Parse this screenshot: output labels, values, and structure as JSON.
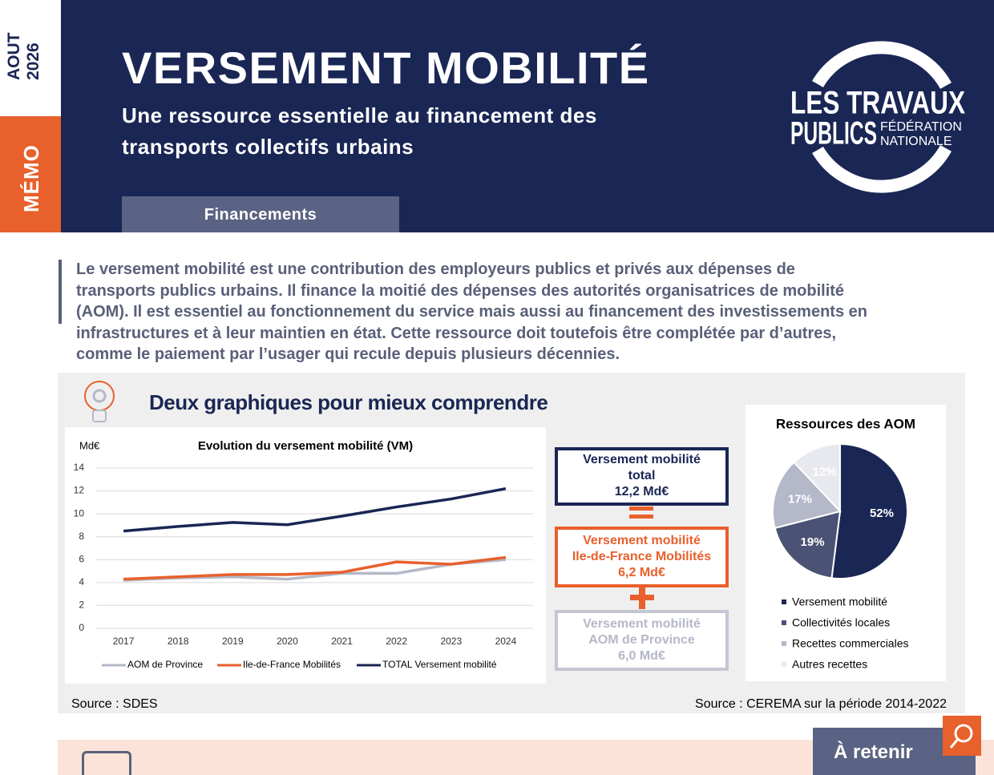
{
  "sidebar": {
    "month": "AOUT",
    "year": "2026",
    "label": "MÉMO"
  },
  "header": {
    "title": "VERSEMENT MOBILITÉ",
    "subtitle": [
      "Une ressource essentielle au financement des",
      "transports collectifs urbains"
    ],
    "tag": "Financements"
  },
  "logo": {
    "line1": "LES TRAVAUX",
    "line2": "PUBLICS",
    "line3": "FÉDÉRATION",
    "line4": "NATIONALE"
  },
  "intro": [
    "Le versement mobilité est une contribution des employeurs publics et privés aux dépenses de",
    "transports publics urbains. Il finance la moitié des dépenses des autorités organisatrices de mobilité",
    "(AOM). Il est essentiel au fonctionnement du service mais aussi au financement des investissements en",
    "infrastructures et à leur maintien en état. Cette ressource doit toutefois être complétée par d’autres,",
    "comme le paiement par l’usager qui recule depuis plusieurs décennies."
  ],
  "section": {
    "title": "Deux graphiques pour mieux comprendre",
    "source_left": "Source : SDES",
    "source_right": "Source : CEREMA sur la période 2014-2022"
  },
  "boxes": [
    {
      "lines": [
        "Versement mobilité",
        "total",
        "12,2 Md€"
      ]
    },
    {
      "lines": [
        "Versement mobilité",
        "Ile-de-France Mobilités",
        "6,2 Md€"
      ]
    },
    {
      "lines": [
        "Versement mobilité",
        "AOM de Province",
        "6,0 Md€"
      ]
    }
  ],
  "footer": {
    "tab": "À retenir"
  },
  "chart_data": [
    {
      "type": "line",
      "title": "Evolution du versement mobilité (VM)",
      "ylabel": "Md€",
      "categories": [
        "2017",
        "2018",
        "2019",
        "2020",
        "2021",
        "2022",
        "2023",
        "2024"
      ],
      "series": [
        {
          "name": "AOM de Province",
          "color": "#b4b8c8",
          "values": [
            4.2,
            4.4,
            4.5,
            4.3,
            4.8,
            4.8,
            5.6,
            6.0
          ]
        },
        {
          "name": "Ile-de-France Mobilités",
          "color": "#e8602c",
          "values": [
            4.3,
            4.5,
            4.7,
            4.7,
            4.9,
            5.8,
            5.6,
            6.2
          ]
        },
        {
          "name": "TOTAL Versement mobilité",
          "color": "#1a2654",
          "values": [
            8.5,
            8.9,
            9.25,
            9.05,
            9.8,
            10.6,
            11.3,
            12.2
          ]
        }
      ],
      "ylim": [
        0,
        14
      ],
      "yticks": [
        0,
        2,
        4,
        6,
        8,
        10,
        12,
        14
      ],
      "grid": true,
      "legend": "bottom"
    },
    {
      "type": "pie",
      "title": "Ressources des AOM",
      "categories": [
        "Versement mobilité",
        "Collectivités locales",
        "Recettes commerciales",
        "Autres recettes"
      ],
      "values": [
        52,
        19,
        17,
        12
      ],
      "value_labels": [
        "52%",
        "19%",
        "17%",
        "12%"
      ],
      "colors": [
        "#1a2654",
        "#4b5374",
        "#b4b8c8",
        "#e8e9ef"
      ],
      "legend": "bottom"
    }
  ]
}
